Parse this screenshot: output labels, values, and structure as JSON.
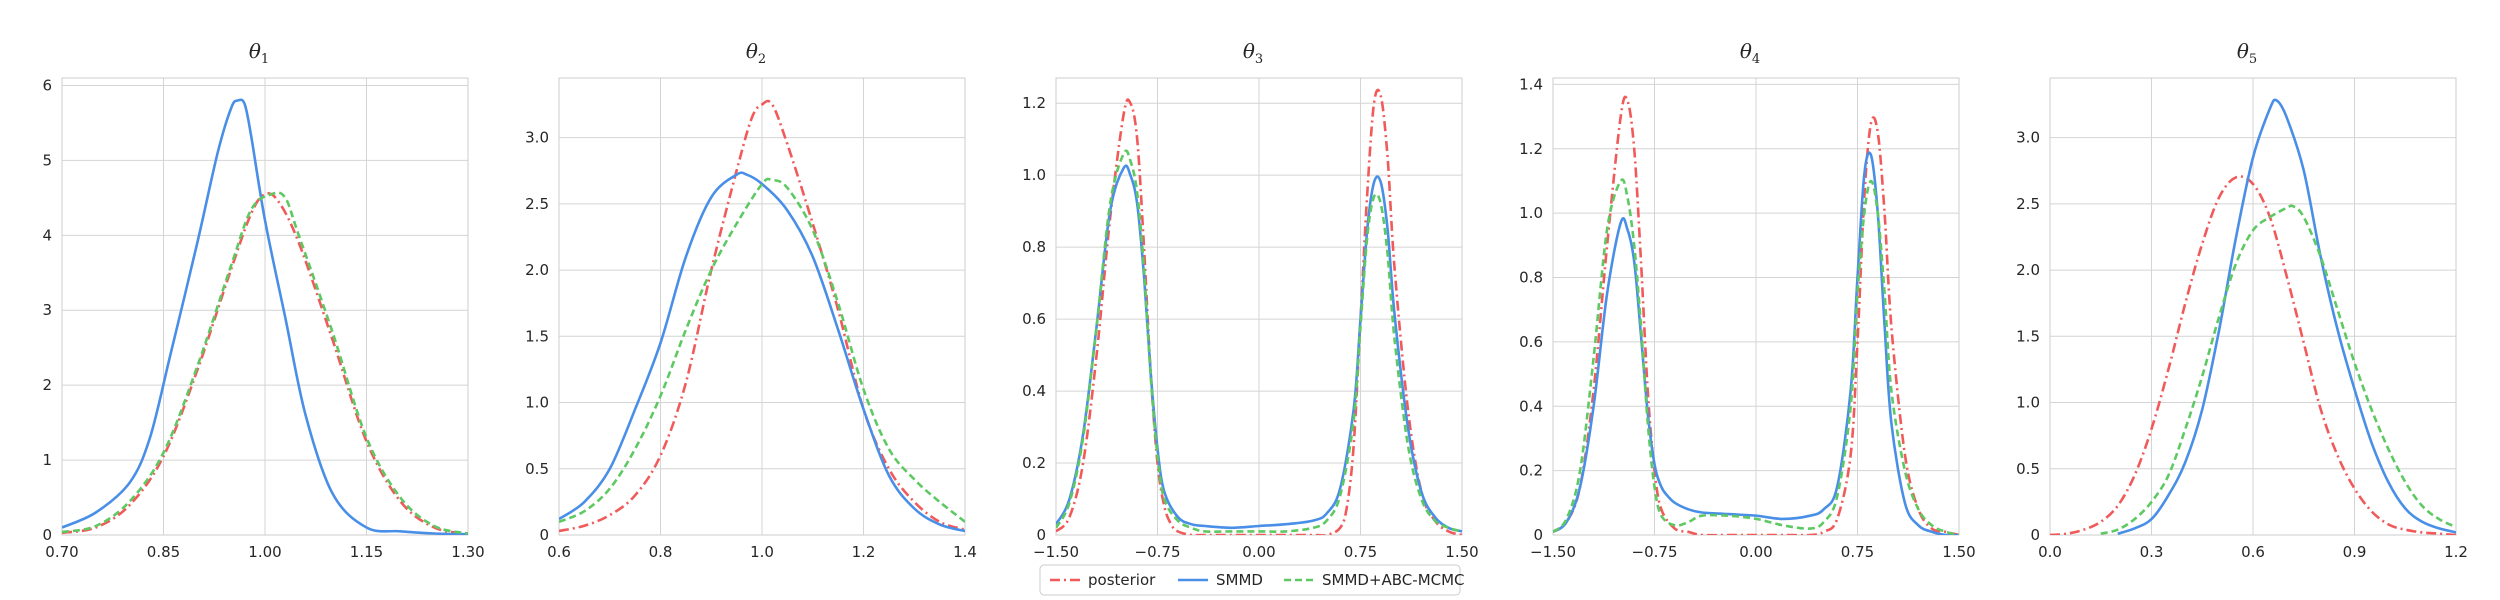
{
  "chart_data": [
    {
      "type": "line",
      "title_symbol": "θ",
      "title_index": "1",
      "xlim": [
        0.7,
        1.3
      ],
      "ylim": [
        0,
        6.1
      ],
      "xticks": [
        "0.70",
        "0.85",
        "1.00",
        "1.15",
        "1.30"
      ],
      "yticks": [
        "0",
        "1",
        "2",
        "3",
        "4",
        "5",
        "6"
      ],
      "grid": true,
      "series": [
        {
          "name": "posterior",
          "x": [
            0.7,
            0.75,
            0.8,
            0.85,
            0.9,
            0.95,
            0.98,
            1.0,
            1.02,
            1.05,
            1.1,
            1.15,
            1.2,
            1.25,
            1.3
          ],
          "values": [
            0.03,
            0.1,
            0.4,
            1.05,
            2.2,
            3.55,
            4.3,
            4.55,
            4.45,
            3.9,
            2.6,
            1.25,
            0.45,
            0.1,
            0.02
          ]
        },
        {
          "name": "SMMD",
          "x": [
            0.7,
            0.75,
            0.8,
            0.83,
            0.86,
            0.9,
            0.93,
            0.95,
            0.96,
            0.97,
            0.98,
            1.0,
            1.03,
            1.06,
            1.1,
            1.15,
            1.2,
            1.25,
            1.3
          ],
          "values": [
            0.1,
            0.3,
            0.7,
            1.3,
            2.4,
            3.9,
            5.1,
            5.7,
            5.8,
            5.75,
            5.3,
            4.2,
            2.9,
            1.6,
            0.55,
            0.1,
            0.05,
            0.02,
            0.01
          ]
        },
        {
          "name": "SMMD+ABC-MCMC",
          "x": [
            0.7,
            0.75,
            0.8,
            0.85,
            0.9,
            0.95,
            0.98,
            1.01,
            1.03,
            1.05,
            1.1,
            1.15,
            1.2,
            1.25,
            1.3
          ],
          "values": [
            0.04,
            0.12,
            0.45,
            1.1,
            2.25,
            3.6,
            4.35,
            4.55,
            4.5,
            4.0,
            2.7,
            1.3,
            0.5,
            0.12,
            0.02
          ]
        }
      ]
    },
    {
      "type": "line",
      "title_symbol": "θ",
      "title_index": "2",
      "xlim": [
        0.6,
        1.4
      ],
      "ylim": [
        0,
        3.45
      ],
      "xticks": [
        "0.6",
        "0.8",
        "1.0",
        "1.2",
        "1.4"
      ],
      "yticks": [
        "0",
        "0.5",
        "1.0",
        "1.5",
        "2.0",
        "2.5",
        "3.0"
      ],
      "grid": true,
      "series": [
        {
          "name": "posterior",
          "x": [
            0.6,
            0.65,
            0.7,
            0.75,
            0.8,
            0.85,
            0.9,
            0.95,
            0.98,
            1.0,
            1.02,
            1.05,
            1.1,
            1.15,
            1.2,
            1.25,
            1.3,
            1.35,
            1.4
          ],
          "values": [
            0.03,
            0.07,
            0.15,
            0.3,
            0.6,
            1.15,
            2.0,
            2.75,
            3.15,
            3.25,
            3.25,
            2.95,
            2.35,
            1.7,
            0.95,
            0.5,
            0.25,
            0.1,
            0.04
          ]
        },
        {
          "name": "SMMD",
          "x": [
            0.6,
            0.65,
            0.7,
            0.75,
            0.8,
            0.85,
            0.9,
            0.95,
            0.97,
            1.0,
            1.05,
            1.1,
            1.15,
            1.2,
            1.25,
            1.3,
            1.35,
            1.4
          ],
          "values": [
            0.12,
            0.25,
            0.5,
            0.95,
            1.45,
            2.1,
            2.55,
            2.72,
            2.72,
            2.65,
            2.45,
            2.1,
            1.55,
            0.95,
            0.45,
            0.2,
            0.08,
            0.03
          ]
        },
        {
          "name": "SMMD+ABC-MCMC",
          "x": [
            0.6,
            0.65,
            0.7,
            0.75,
            0.8,
            0.85,
            0.9,
            0.95,
            1.0,
            1.02,
            1.05,
            1.1,
            1.15,
            1.2,
            1.25,
            1.3,
            1.35,
            1.4
          ],
          "values": [
            0.1,
            0.18,
            0.35,
            0.65,
            1.05,
            1.55,
            2.0,
            2.35,
            2.65,
            2.68,
            2.62,
            2.3,
            1.75,
            1.1,
            0.65,
            0.42,
            0.25,
            0.1
          ]
        }
      ]
    },
    {
      "type": "line",
      "title_symbol": "θ",
      "title_index": "3",
      "xlim": [
        -1.5,
        1.5
      ],
      "ylim": [
        0,
        1.27
      ],
      "xticks": [
        "−1.50",
        "−0.75",
        "0.00",
        "0.75",
        "1.50"
      ],
      "yticks": [
        "0",
        "0.2",
        "0.4",
        "0.6",
        "0.8",
        "1.0",
        "1.2"
      ],
      "grid": true,
      "series": [
        {
          "name": "posterior",
          "x": [
            -1.5,
            -1.4,
            -1.3,
            -1.2,
            -1.1,
            -1.0,
            -0.95,
            -0.9,
            -0.85,
            -0.8,
            -0.75,
            -0.7,
            -0.65,
            -0.6,
            -0.5,
            -0.4,
            0.0,
            0.4,
            0.5,
            0.6,
            0.65,
            0.7,
            0.75,
            0.8,
            0.85,
            0.9,
            0.95,
            1.0,
            1.1,
            1.2,
            1.3,
            1.4,
            1.5
          ],
          "values": [
            0.01,
            0.05,
            0.2,
            0.5,
            0.88,
            1.17,
            1.2,
            1.1,
            0.8,
            0.45,
            0.2,
            0.08,
            0.03,
            0.01,
            0.0,
            0.0,
            0.0,
            0.0,
            0.0,
            0.02,
            0.08,
            0.25,
            0.6,
            0.95,
            1.2,
            1.22,
            1.05,
            0.75,
            0.35,
            0.12,
            0.04,
            0.01,
            0.0
          ]
        },
        {
          "name": "SMMD",
          "x": [
            -1.5,
            -1.4,
            -1.3,
            -1.2,
            -1.1,
            -1.0,
            -0.95,
            -0.9,
            -0.85,
            -0.8,
            -0.75,
            -0.7,
            -0.6,
            -0.5,
            -0.4,
            -0.2,
            0.0,
            0.2,
            0.4,
            0.5,
            0.6,
            0.7,
            0.75,
            0.8,
            0.85,
            0.9,
            0.95,
            1.0,
            1.1,
            1.2,
            1.3,
            1.4,
            1.5
          ],
          "values": [
            0.03,
            0.1,
            0.28,
            0.58,
            0.9,
            1.02,
            1.0,
            0.92,
            0.72,
            0.45,
            0.24,
            0.12,
            0.05,
            0.03,
            0.025,
            0.02,
            0.025,
            0.03,
            0.04,
            0.06,
            0.13,
            0.35,
            0.6,
            0.85,
            0.98,
            0.98,
            0.85,
            0.62,
            0.3,
            0.12,
            0.05,
            0.02,
            0.01
          ]
        },
        {
          "name": "SMMD+ABC-MCMC",
          "x": [
            -1.5,
            -1.4,
            -1.3,
            -1.2,
            -1.1,
            -1.0,
            -0.95,
            -0.9,
            -0.85,
            -0.8,
            -0.75,
            -0.7,
            -0.6,
            -0.5,
            -0.4,
            -0.2,
            0.0,
            0.2,
            0.4,
            0.5,
            0.6,
            0.7,
            0.75,
            0.8,
            0.85,
            0.9,
            0.95,
            1.0,
            1.1,
            1.2,
            1.3,
            1.4,
            1.5
          ],
          "values": [
            0.02,
            0.09,
            0.27,
            0.58,
            0.92,
            1.06,
            1.04,
            0.95,
            0.74,
            0.44,
            0.22,
            0.1,
            0.04,
            0.02,
            0.01,
            0.01,
            0.01,
            0.01,
            0.02,
            0.04,
            0.11,
            0.32,
            0.58,
            0.83,
            0.94,
            0.92,
            0.78,
            0.55,
            0.25,
            0.1,
            0.04,
            0.02,
            0.01
          ]
        }
      ]
    },
    {
      "type": "line",
      "title_symbol": "θ",
      "title_index": "4",
      "xlim": [
        -1.5,
        1.5
      ],
      "ylim": [
        0,
        1.42
      ],
      "xticks": [
        "−1.50",
        "−0.75",
        "0.00",
        "0.75",
        "1.50"
      ],
      "yticks": [
        "0",
        "0.2",
        "0.4",
        "0.6",
        "0.8",
        "1.0",
        "1.2",
        "1.4"
      ],
      "grid": true,
      "series": [
        {
          "name": "posterior",
          "x": [
            -1.5,
            -1.4,
            -1.3,
            -1.2,
            -1.1,
            -1.0,
            -0.95,
            -0.9,
            -0.85,
            -0.8,
            -0.75,
            -0.7,
            -0.6,
            -0.5,
            -0.4,
            -0.2,
            0.0,
            0.2,
            0.4,
            0.5,
            0.6,
            0.7,
            0.75,
            0.8,
            0.85,
            0.9,
            0.95,
            1.0,
            1.1,
            1.2,
            1.3,
            1.4,
            1.5
          ],
          "values": [
            0.01,
            0.04,
            0.15,
            0.45,
            0.9,
            1.3,
            1.35,
            1.2,
            0.85,
            0.45,
            0.2,
            0.08,
            0.02,
            0.01,
            0.0,
            0.0,
            0.0,
            0.0,
            0.0,
            0.01,
            0.05,
            0.25,
            0.6,
            1.05,
            1.28,
            1.25,
            1.0,
            0.65,
            0.25,
            0.08,
            0.02,
            0.01,
            0.0
          ]
        },
        {
          "name": "SMMD",
          "x": [
            -1.5,
            -1.4,
            -1.3,
            -1.2,
            -1.1,
            -1.0,
            -0.95,
            -0.9,
            -0.85,
            -0.8,
            -0.75,
            -0.7,
            -0.65,
            -0.6,
            -0.5,
            -0.4,
            -0.2,
            0.0,
            0.2,
            0.4,
            0.5,
            0.6,
            0.7,
            0.75,
            0.8,
            0.85,
            0.9,
            0.95,
            1.0,
            1.1,
            1.2,
            1.3,
            1.4,
            1.5
          ],
          "values": [
            0.01,
            0.04,
            0.15,
            0.4,
            0.75,
            0.97,
            0.95,
            0.85,
            0.62,
            0.38,
            0.22,
            0.15,
            0.12,
            0.1,
            0.08,
            0.07,
            0.065,
            0.06,
            0.05,
            0.06,
            0.08,
            0.15,
            0.45,
            0.8,
            1.12,
            1.18,
            1.0,
            0.65,
            0.35,
            0.1,
            0.03,
            0.01,
            0.0,
            0.0
          ]
        },
        {
          "name": "SMMD+ABC-MCMC",
          "x": [
            -1.5,
            -1.4,
            -1.3,
            -1.2,
            -1.1,
            -1.0,
            -0.95,
            -0.9,
            -0.85,
            -0.8,
            -0.75,
            -0.7,
            -0.6,
            -0.5,
            -0.4,
            -0.2,
            0.0,
            0.2,
            0.4,
            0.5,
            0.6,
            0.7,
            0.75,
            0.8,
            0.85,
            0.9,
            0.95,
            1.0,
            1.1,
            1.2,
            1.3,
            1.4,
            1.5
          ],
          "values": [
            0.01,
            0.05,
            0.2,
            0.55,
            0.95,
            1.1,
            1.05,
            0.9,
            0.65,
            0.35,
            0.15,
            0.06,
            0.03,
            0.04,
            0.06,
            0.06,
            0.05,
            0.03,
            0.02,
            0.04,
            0.12,
            0.4,
            0.75,
            1.0,
            1.1,
            1.0,
            0.75,
            0.45,
            0.2,
            0.08,
            0.03,
            0.01,
            0.0
          ]
        }
      ]
    },
    {
      "type": "line",
      "title_symbol": "θ",
      "title_index": "5",
      "xlim": [
        0.0,
        1.2
      ],
      "ylim": [
        0,
        3.45
      ],
      "xticks": [
        "0.0",
        "0.3",
        "0.6",
        "0.9",
        "1.2"
      ],
      "yticks": [
        "0",
        "0.5",
        "1.0",
        "1.5",
        "2.0",
        "2.5",
        "3.0"
      ],
      "grid": true,
      "series": [
        {
          "name": "posterior",
          "x": [
            0.0,
            0.05,
            0.1,
            0.15,
            0.2,
            0.25,
            0.3,
            0.35,
            0.4,
            0.45,
            0.5,
            0.55,
            0.6,
            0.65,
            0.7,
            0.75,
            0.8,
            0.85,
            0.9,
            0.95,
            1.0,
            1.05,
            1.1,
            1.15,
            1.2
          ],
          "values": [
            0.0,
            0.01,
            0.04,
            0.1,
            0.22,
            0.45,
            0.8,
            1.25,
            1.75,
            2.2,
            2.55,
            2.7,
            2.65,
            2.4,
            1.95,
            1.45,
            0.95,
            0.6,
            0.35,
            0.18,
            0.08,
            0.04,
            0.02,
            0.01,
            0.0
          ]
        },
        {
          "name": "SMMD",
          "x": [
            0.2,
            0.25,
            0.3,
            0.35,
            0.4,
            0.45,
            0.5,
            0.55,
            0.6,
            0.65,
            0.67,
            0.7,
            0.75,
            0.8,
            0.85,
            0.9,
            0.95,
            1.0,
            1.05,
            1.1,
            1.15,
            1.2
          ],
          "values": [
            0.01,
            0.05,
            0.12,
            0.3,
            0.55,
            0.95,
            1.55,
            2.25,
            2.85,
            3.22,
            3.28,
            3.15,
            2.75,
            2.1,
            1.55,
            1.1,
            0.7,
            0.4,
            0.2,
            0.1,
            0.05,
            0.02
          ]
        },
        {
          "name": "SMMD+ABC-MCMC",
          "x": [
            0.15,
            0.2,
            0.25,
            0.3,
            0.35,
            0.4,
            0.45,
            0.5,
            0.55,
            0.6,
            0.65,
            0.7,
            0.72,
            0.75,
            0.8,
            0.85,
            0.9,
            0.95,
            1.0,
            1.05,
            1.1,
            1.15,
            1.2
          ],
          "values": [
            0.01,
            0.04,
            0.12,
            0.25,
            0.45,
            0.8,
            1.2,
            1.65,
            2.05,
            2.3,
            2.4,
            2.47,
            2.48,
            2.4,
            2.1,
            1.7,
            1.3,
            0.95,
            0.65,
            0.4,
            0.22,
            0.12,
            0.06
          ]
        }
      ]
    }
  ],
  "legend": {
    "items": [
      {
        "label": "posterior",
        "color": "#f15a5a",
        "style": "dashdot"
      },
      {
        "label": "SMMD",
        "color": "#4a8fe7",
        "style": "solid"
      },
      {
        "label": "SMMD+ABC-MCMC",
        "color": "#5ec962",
        "style": "dashed"
      }
    ],
    "placement": "bottom-center"
  },
  "colors": {
    "posterior": "#f15a5a",
    "SMMD": "#4a8fe7",
    "SMMD+ABC-MCMC": "#5ec962",
    "grid": "#d4d4d4",
    "spine": "#cccccc"
  }
}
